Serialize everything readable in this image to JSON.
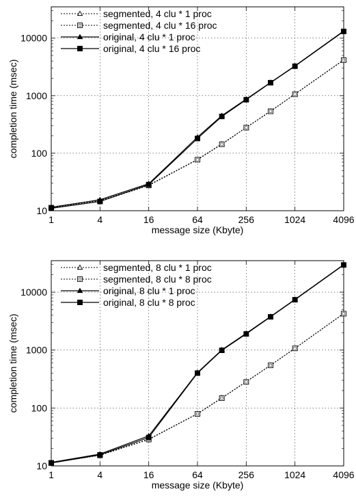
{
  "chart_data": [
    {
      "type": "line",
      "title": "",
      "xlabel": "message size (Kbyte)",
      "ylabel": "completion time (msec)",
      "x_scale": "log2",
      "y_scale": "log10",
      "xlim": [
        1,
        4096
      ],
      "ylim": [
        10,
        35000
      ],
      "x_ticks": [
        1,
        4,
        16,
        64,
        256,
        1024,
        4096
      ],
      "y_ticks": [
        10,
        100,
        1000,
        10000
      ],
      "grid": true,
      "legend_position": "top-left",
      "series": [
        {
          "name": "segmented, 4 clu * 1 proc",
          "marker": "open-triangle",
          "line": "dotted",
          "x": [
            1,
            4,
            16,
            64,
            128,
            256,
            512,
            1024,
            4096
          ],
          "y": [
            11.5,
            15,
            28,
            78,
            145,
            280,
            540,
            1070,
            4200
          ]
        },
        {
          "name": "segmented, 4 clu * 16 proc",
          "marker": "open-square",
          "line": "dotted",
          "x": [
            1,
            4,
            16,
            64,
            128,
            256,
            512,
            1024,
            4096
          ],
          "y": [
            11.3,
            14.5,
            27.5,
            77,
            143,
            278,
            535,
            1060,
            4150
          ]
        },
        {
          "name": "original, 4 clu * 1 proc",
          "marker": "filled-triangle",
          "line": "solid",
          "x": [
            1,
            4,
            16,
            64,
            128,
            256,
            512,
            1024,
            4096
          ],
          "y": [
            11.5,
            15.5,
            29.5,
            190,
            450,
            870,
            1700,
            3300,
            13300
          ]
        },
        {
          "name": "original, 4 clu * 16 proc",
          "marker": "filled-square",
          "line": "solid",
          "x": [
            1,
            4,
            16,
            64,
            128,
            256,
            512,
            1024,
            4096
          ],
          "y": [
            11,
            14.5,
            28.5,
            180,
            435,
            850,
            1680,
            3250,
            13100
          ]
        }
      ]
    },
    {
      "type": "line",
      "title": "",
      "xlabel": "message size (Kbyte)",
      "ylabel": "completion time (msec)",
      "x_scale": "log2",
      "y_scale": "log10",
      "xlim": [
        1,
        4096
      ],
      "ylim": [
        10,
        35000
      ],
      "x_ticks": [
        1,
        4,
        16,
        64,
        256,
        1024,
        4096
      ],
      "y_ticks": [
        10,
        100,
        1000,
        10000
      ],
      "grid": true,
      "legend_position": "top-left",
      "series": [
        {
          "name": "segmented, 8 clu * 1 proc",
          "marker": "open-triangle",
          "line": "dotted",
          "x": [
            1,
            4,
            16,
            64,
            128,
            256,
            512,
            1024,
            4096
          ],
          "y": [
            11.5,
            15.5,
            29,
            80,
            150,
            285,
            550,
            1080,
            4300
          ]
        },
        {
          "name": "segmented, 8 clu * 8 proc",
          "marker": "open-square",
          "line": "dotted",
          "x": [
            1,
            4,
            16,
            64,
            128,
            256,
            512,
            1024,
            4096
          ],
          "y": [
            11.3,
            15.2,
            28.5,
            79,
            148,
            282,
            545,
            1070,
            4250
          ]
        },
        {
          "name": "original, 8 clu * 1 proc",
          "marker": "filled-triangle",
          "line": "solid",
          "x": [
            1,
            4,
            16,
            64,
            128,
            256,
            512,
            1024,
            4096
          ],
          "y": [
            11.5,
            16,
            33,
            410,
            1010,
            1950,
            3800,
            7500,
            30000
          ]
        },
        {
          "name": "original, 8 clu * 8 proc",
          "marker": "filled-square",
          "line": "solid",
          "x": [
            1,
            4,
            16,
            64,
            128,
            256,
            512,
            1024,
            4096
          ],
          "y": [
            11.2,
            15.5,
            31,
            400,
            990,
            1900,
            3750,
            7400,
            29500
          ]
        }
      ]
    }
  ]
}
